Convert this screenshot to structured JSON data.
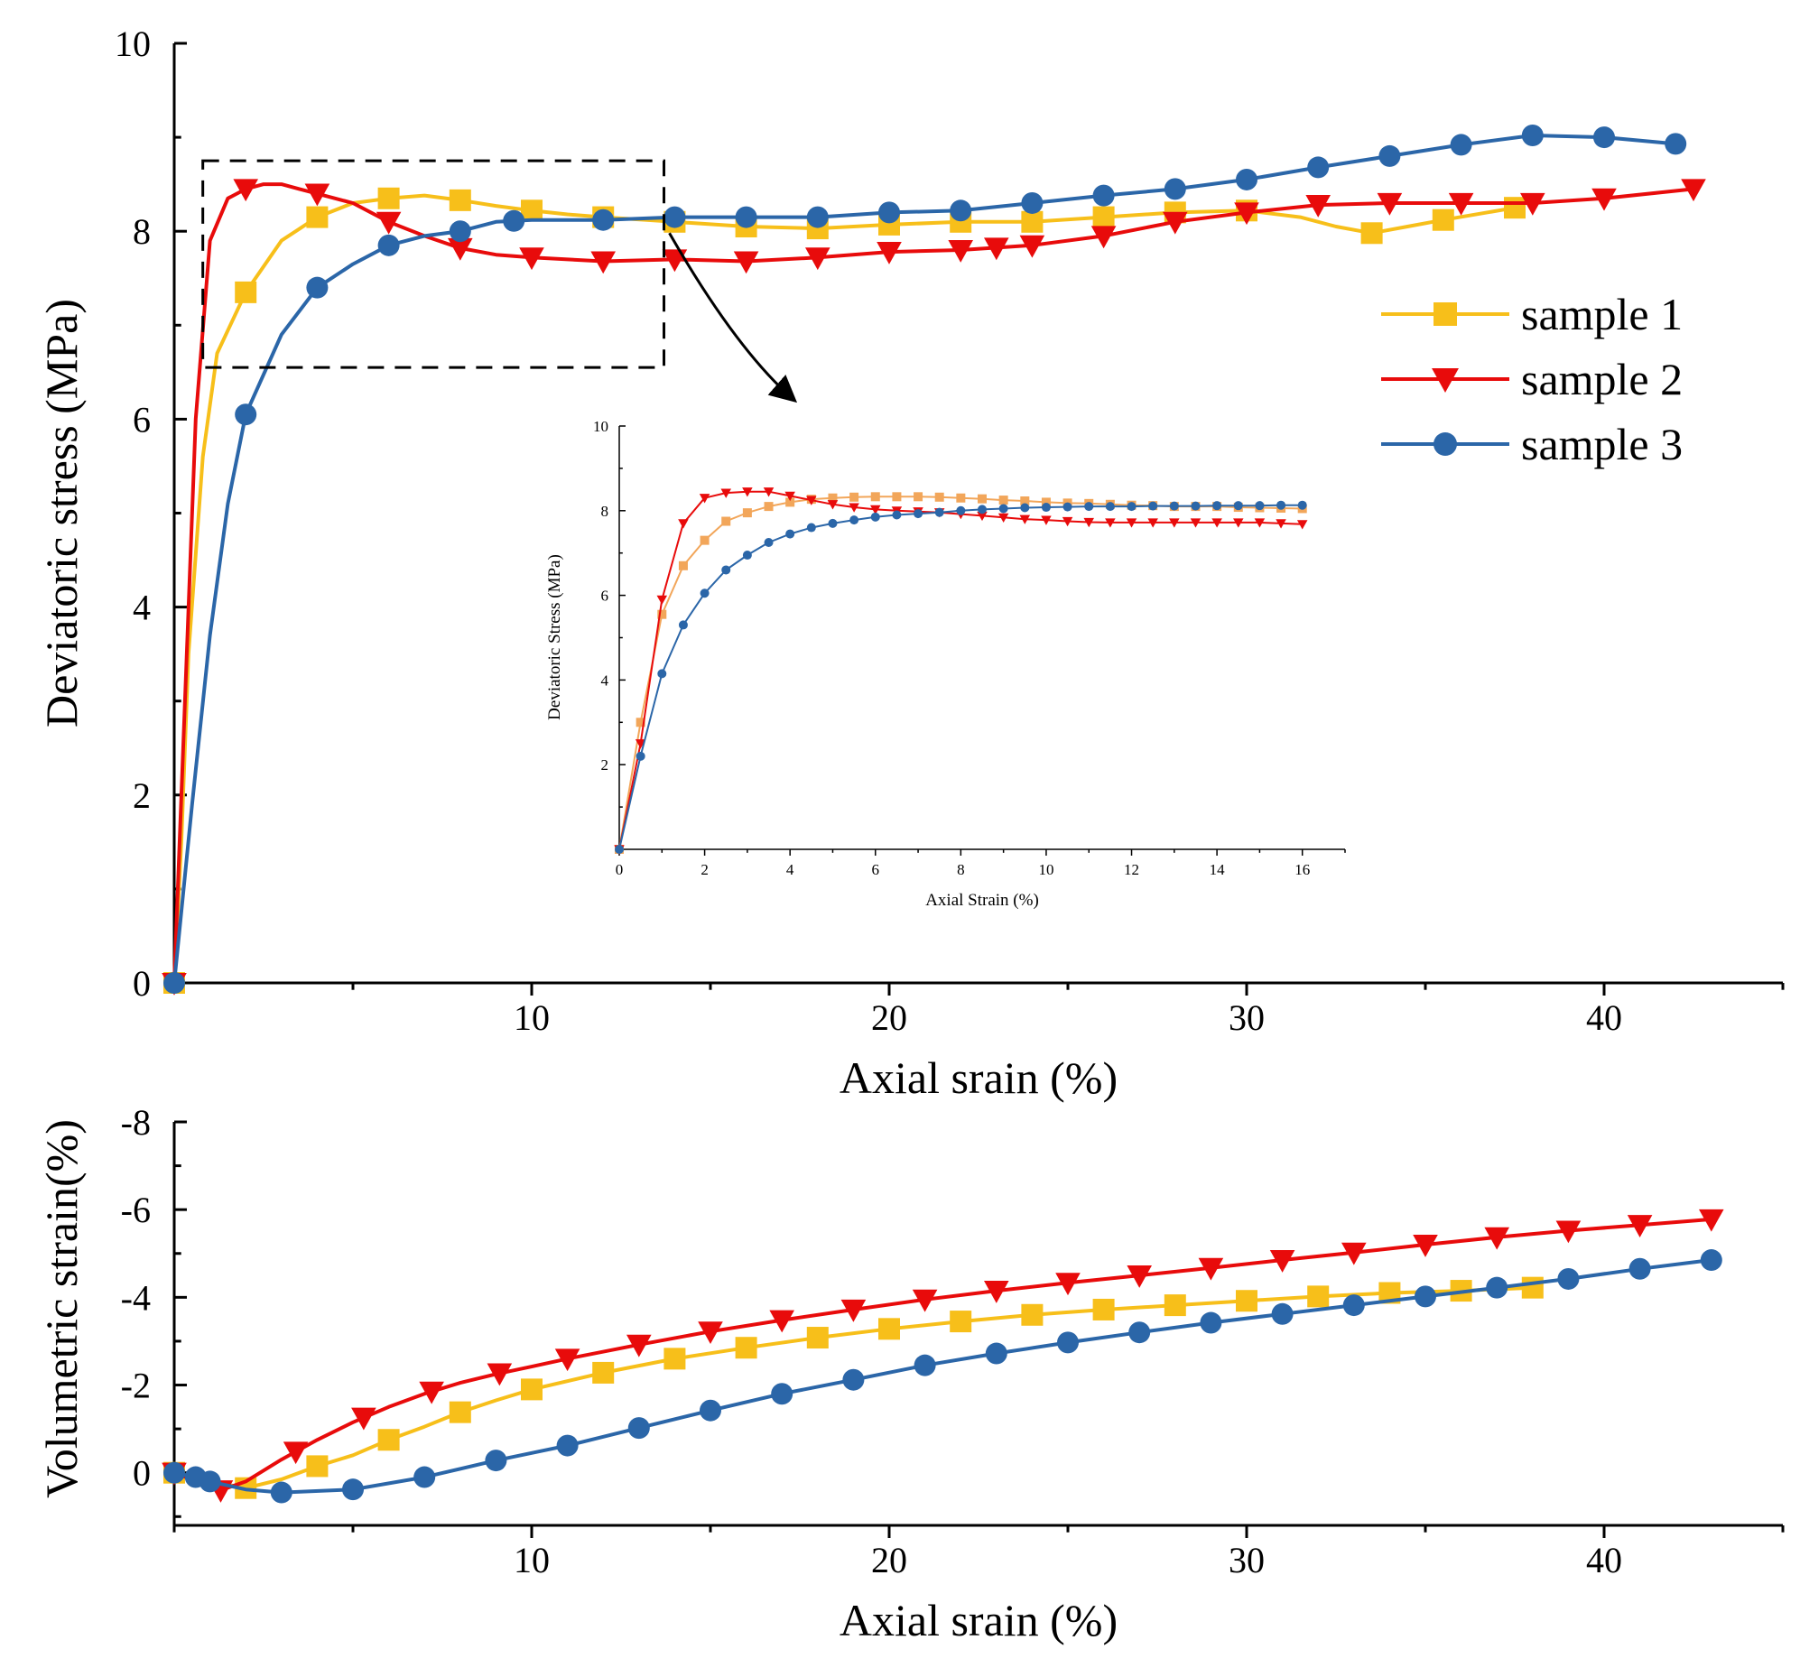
{
  "colors": {
    "sample1": "#F7BF1A",
    "sample1_inset": "#F2A65A",
    "sample2": "#E80B0B",
    "sample3": "#2B66A8",
    "axis": "#000000"
  },
  "chart_data": [
    {
      "type": "line",
      "panel": "main",
      "xlabel": "Axial srain (%)",
      "ylabel": "Deviatoric stress (MPa)",
      "xlim": [
        0,
        45
      ],
      "ylim": [
        0,
        10
      ],
      "xticks": [
        10,
        20,
        30,
        40
      ],
      "yticks": [
        0,
        2,
        4,
        6,
        8,
        10
      ],
      "grid": false,
      "legend": "right",
      "zoom_box": {
        "x": [
          0.8,
          13.7
        ],
        "y": [
          6.55,
          8.75
        ]
      },
      "series": [
        {
          "name": "sample 1",
          "marker": "square",
          "color_key": "sample1",
          "x": [
            0,
            0.2,
            0.4,
            0.8,
            1.2,
            2.0,
            3.0,
            4.0,
            5.0,
            6.0,
            7.0,
            8.0,
            9.0,
            10.0,
            11.0,
            12.0,
            14.0,
            16.0,
            18.0,
            20.0,
            22.0,
            24.0,
            26.0,
            28.0,
            30.0,
            31.5,
            32.5,
            33.5,
            34.5,
            35.5,
            37.5
          ],
          "y": [
            0,
            1.5,
            3.5,
            5.6,
            6.7,
            7.35,
            7.9,
            8.15,
            8.3,
            8.35,
            8.38,
            8.33,
            8.27,
            8.22,
            8.18,
            8.15,
            8.1,
            8.05,
            8.03,
            8.07,
            8.1,
            8.1,
            8.15,
            8.2,
            8.22,
            8.15,
            8.05,
            7.98,
            8.05,
            8.12,
            8.25
          ],
          "markers_x": [
            0,
            2,
            4,
            6,
            8,
            10,
            12,
            14,
            16,
            18,
            20,
            22,
            24,
            26,
            28,
            30,
            33.5,
            35.5,
            37.5
          ]
        },
        {
          "name": "sample 2",
          "marker": "triangle-down",
          "color_key": "sample2",
          "x": [
            0,
            0.3,
            0.6,
            1.0,
            1.5,
            2.0,
            2.5,
            3.0,
            3.5,
            4.0,
            5.0,
            6.0,
            7.0,
            8.0,
            9.0,
            10.0,
            12.0,
            14.0,
            16.0,
            18.0,
            20.0,
            22.0,
            24.0,
            26.0,
            28.0,
            30.0,
            32.0,
            34.0,
            36.0,
            38.0,
            40.0,
            42.5
          ],
          "y": [
            0,
            3.0,
            6.0,
            7.9,
            8.35,
            8.45,
            8.5,
            8.5,
            8.45,
            8.4,
            8.3,
            8.1,
            7.95,
            7.82,
            7.75,
            7.72,
            7.68,
            7.7,
            7.68,
            7.72,
            7.78,
            7.8,
            7.85,
            7.95,
            8.1,
            8.2,
            8.28,
            8.3,
            8.3,
            8.3,
            8.35,
            8.45
          ],
          "markers_x": [
            0,
            2,
            4,
            6,
            8,
            10,
            12,
            14,
            16,
            18,
            20,
            22,
            23,
            24,
            26,
            28,
            30,
            32,
            34,
            36,
            38,
            40,
            42.5
          ]
        },
        {
          "name": "sample 3",
          "marker": "circle",
          "color_key": "sample3",
          "x": [
            0,
            0.5,
            1.0,
            1.5,
            2.0,
            3.0,
            4.0,
            5.0,
            6.0,
            7.0,
            8.0,
            9.0,
            10.0,
            12.0,
            14.0,
            16.0,
            18.0,
            20.0,
            22.0,
            24.0,
            26.0,
            28.0,
            30.0,
            32.0,
            34.0,
            36.0,
            38.0,
            40.0,
            42.0
          ],
          "y": [
            0,
            1.9,
            3.7,
            5.1,
            6.05,
            6.9,
            7.4,
            7.65,
            7.85,
            7.95,
            8.0,
            8.1,
            8.12,
            8.12,
            8.15,
            8.15,
            8.15,
            8.2,
            8.22,
            8.3,
            8.38,
            8.45,
            8.55,
            8.68,
            8.8,
            8.92,
            9.02,
            9.0,
            8.93
          ],
          "markers_x": [
            0,
            2,
            4,
            6,
            8,
            9.5,
            12,
            14,
            16,
            18,
            20,
            22,
            24,
            26,
            28,
            30,
            32,
            34,
            36,
            38,
            40,
            42
          ]
        }
      ]
    },
    {
      "type": "line",
      "panel": "inset",
      "xlabel": "Axial Strain (%)",
      "ylabel": "Deviatoric Stress (MPa)",
      "xlim": [
        0,
        17
      ],
      "ylim": [
        0,
        10
      ],
      "xticks": [
        0,
        2,
        4,
        6,
        8,
        10,
        12,
        14,
        16
      ],
      "yticks": [
        2,
        4,
        6,
        8,
        10
      ],
      "grid": false,
      "series": [
        {
          "name": "sample 1",
          "marker": "square",
          "color_key": "sample1_inset",
          "x": [
            0,
            0.5,
            1.0,
            1.5,
            2.0,
            2.5,
            3.0,
            3.5,
            4.0,
            4.5,
            5.0,
            5.5,
            6.0,
            6.5,
            7.0,
            7.5,
            8.0,
            8.5,
            9.0,
            9.5,
            10.0,
            10.5,
            11.0,
            11.5,
            12.0,
            12.5,
            13.0,
            13.5,
            14.0,
            14.5,
            15.0,
            15.5,
            16.0
          ],
          "y": [
            0,
            3.0,
            5.55,
            6.7,
            7.3,
            7.75,
            7.95,
            8.1,
            8.2,
            8.27,
            8.3,
            8.32,
            8.33,
            8.33,
            8.33,
            8.32,
            8.3,
            8.28,
            8.25,
            8.23,
            8.2,
            8.18,
            8.17,
            8.15,
            8.13,
            8.12,
            8.1,
            8.1,
            8.1,
            8.08,
            8.07,
            8.06,
            8.05
          ]
        },
        {
          "name": "sample 2",
          "marker": "triangle-down",
          "color_key": "sample2",
          "x": [
            0,
            0.5,
            1.0,
            1.5,
            2.0,
            2.5,
            3.0,
            3.5,
            4.0,
            4.5,
            5.0,
            5.5,
            6.0,
            6.5,
            7.0,
            7.5,
            8.0,
            8.5,
            9.0,
            9.5,
            10.0,
            10.5,
            11.0,
            11.5,
            12.0,
            12.5,
            13.0,
            13.5,
            14.0,
            14.5,
            15.0,
            15.5,
            16.0
          ],
          "y": [
            0,
            2.5,
            5.9,
            7.7,
            8.3,
            8.42,
            8.45,
            8.45,
            8.35,
            8.25,
            8.15,
            8.08,
            8.03,
            8.0,
            7.98,
            7.96,
            7.92,
            7.88,
            7.84,
            7.8,
            7.78,
            7.75,
            7.73,
            7.72,
            7.72,
            7.72,
            7.72,
            7.72,
            7.72,
            7.72,
            7.72,
            7.7,
            7.68
          ]
        },
        {
          "name": "sample 3",
          "marker": "circle",
          "color_key": "sample3",
          "x": [
            0,
            0.5,
            1.0,
            1.5,
            2.0,
            2.5,
            3.0,
            3.5,
            4.0,
            4.5,
            5.0,
            5.5,
            6.0,
            6.5,
            7.0,
            7.5,
            8.0,
            8.5,
            9.0,
            9.5,
            10.0,
            10.5,
            11.0,
            11.5,
            12.0,
            12.5,
            13.0,
            13.5,
            14.0,
            14.5,
            15.0,
            15.5,
            16.0
          ],
          "y": [
            0,
            2.2,
            4.15,
            5.3,
            6.05,
            6.6,
            6.95,
            7.25,
            7.45,
            7.6,
            7.7,
            7.78,
            7.85,
            7.9,
            7.93,
            7.96,
            8.0,
            8.03,
            8.05,
            8.07,
            8.08,
            8.09,
            8.1,
            8.1,
            8.1,
            8.11,
            8.11,
            8.11,
            8.12,
            8.12,
            8.12,
            8.13,
            8.13
          ]
        }
      ]
    },
    {
      "type": "line",
      "panel": "bottom",
      "xlabel": "Axial srain (%)",
      "ylabel": "Volumetric strain(%)",
      "xlim": [
        0,
        45
      ],
      "ylim": [
        -8,
        1.2
      ],
      "y_inverted": true,
      "xticks": [
        10,
        20,
        30,
        40
      ],
      "yticks": [
        -8,
        -6,
        -4,
        -2,
        0
      ],
      "grid": false,
      "series": [
        {
          "name": "sample 1",
          "marker": "square",
          "color_key": "sample1",
          "x": [
            0,
            1,
            2,
            3,
            4,
            5,
            6,
            7,
            8,
            9,
            10,
            12,
            14,
            16,
            18,
            20,
            22,
            24,
            26,
            28,
            30,
            32,
            34,
            36,
            38
          ],
          "y": [
            0,
            0.2,
            0.35,
            0.15,
            -0.15,
            -0.4,
            -0.75,
            -1.05,
            -1.38,
            -1.65,
            -1.9,
            -2.28,
            -2.6,
            -2.85,
            -3.08,
            -3.28,
            -3.45,
            -3.6,
            -3.72,
            -3.82,
            -3.92,
            -4.02,
            -4.1,
            -4.15,
            -4.22
          ],
          "markers_x": [
            0,
            2,
            4,
            6,
            8,
            10,
            12,
            14,
            16,
            18,
            20,
            22,
            24,
            26,
            28,
            30,
            32,
            34,
            36,
            38
          ]
        },
        {
          "name": "sample 2",
          "marker": "triangle-down",
          "color_key": "sample2",
          "x": [
            0,
            0.8,
            1.3,
            2.0,
            3.0,
            4.0,
            5.0,
            6.0,
            7.0,
            8.0,
            9.0,
            10.0,
            11.0,
            13.0,
            15.0,
            17.0,
            19.0,
            21.0,
            23.0,
            25.0,
            27.0,
            29.0,
            31.0,
            33.0,
            35.0,
            37.0,
            39.0,
            41.0,
            43.0
          ],
          "y": [
            0,
            0.25,
            0.4,
            0.2,
            -0.3,
            -0.75,
            -1.15,
            -1.5,
            -1.8,
            -2.05,
            -2.25,
            -2.42,
            -2.6,
            -2.92,
            -3.22,
            -3.48,
            -3.72,
            -3.95,
            -4.15,
            -4.33,
            -4.5,
            -4.67,
            -4.85,
            -5.02,
            -5.2,
            -5.37,
            -5.52,
            -5.65,
            -5.78
          ],
          "markers_x": [
            0,
            1.3,
            3.4,
            5.3,
            7.2,
            9.1,
            11.0,
            13.0,
            15.0,
            17.0,
            19.0,
            21.0,
            23.0,
            25.0,
            27.0,
            29.0,
            31.0,
            33.0,
            35.0,
            37.0,
            39.0,
            41.0,
            43.0
          ]
        },
        {
          "name": "sample 3",
          "marker": "circle",
          "color_key": "sample3",
          "x": [
            0,
            0.6,
            1.0,
            2.0,
            3.0,
            5.0,
            7.0,
            9.0,
            11.0,
            13.0,
            15.0,
            17.0,
            19.0,
            21.0,
            23.0,
            25.0,
            27.0,
            29.0,
            31.0,
            33.0,
            35.0,
            37.0,
            39.0,
            41.0,
            43.0
          ],
          "y": [
            0,
            0.1,
            0.2,
            0.38,
            0.45,
            0.38,
            0.1,
            -0.28,
            -0.62,
            -1.02,
            -1.42,
            -1.8,
            -2.12,
            -2.45,
            -2.72,
            -2.97,
            -3.2,
            -3.42,
            -3.62,
            -3.82,
            -4.02,
            -4.22,
            -4.42,
            -4.65,
            -4.85
          ],
          "markers_x": [
            0,
            0.6,
            1.0,
            3.0,
            5.0,
            7.0,
            9.0,
            11.0,
            13.0,
            15.0,
            17.0,
            19.0,
            21.0,
            23.0,
            25.0,
            27.0,
            29.0,
            31.0,
            33.0,
            35.0,
            37.0,
            39.0,
            41.0,
            43.0
          ]
        }
      ]
    }
  ]
}
